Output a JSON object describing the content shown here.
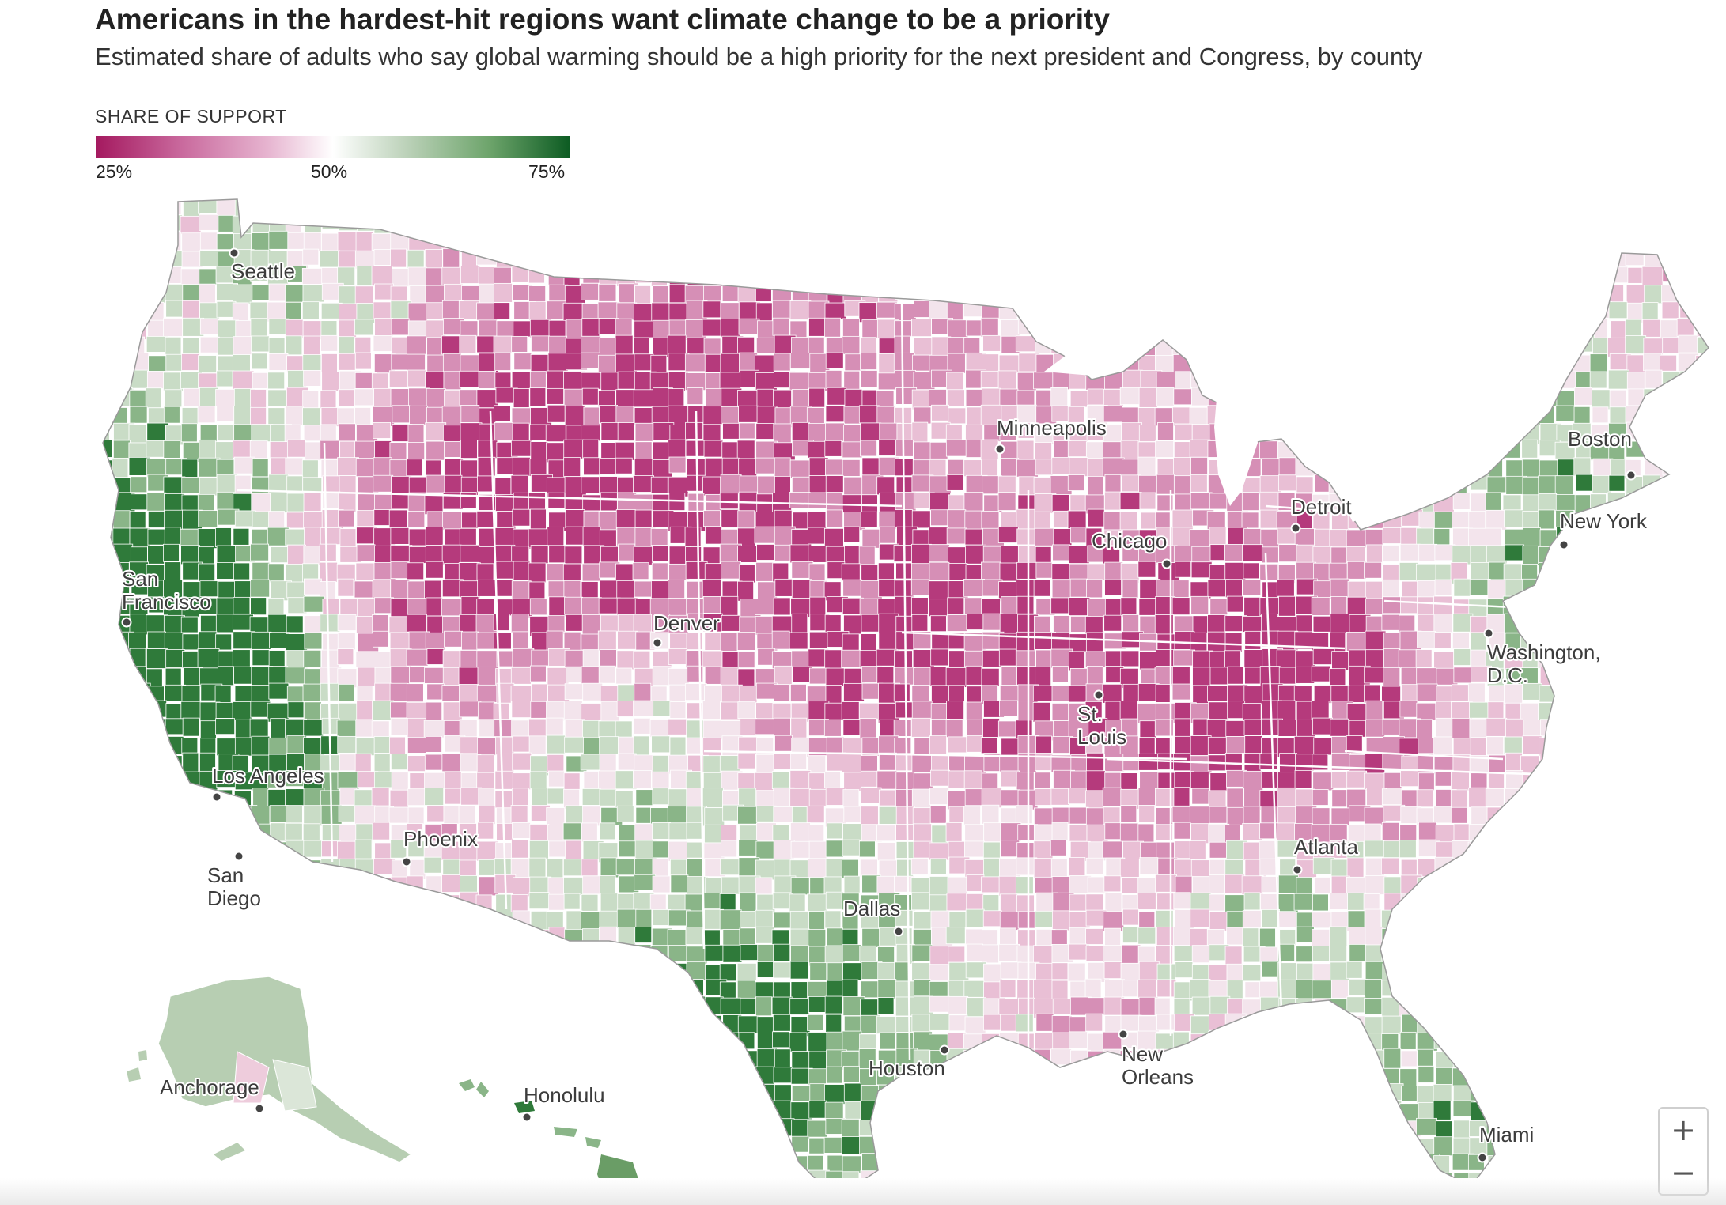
{
  "header": {
    "title": "Americans in the hardest-hit regions want climate change to be a priority",
    "subtitle": "Estimated share of adults who say global warming should be a high priority for the next president and Congress, by county"
  },
  "legend": {
    "title": "SHARE OF SUPPORT",
    "ticks": [
      "25%",
      "50%",
      "75%"
    ],
    "scale": {
      "min": 25,
      "mid": 50,
      "max": 75
    },
    "colors": {
      "low": "#a4195f",
      "mid": "#ffffff",
      "high": "#0c5b22"
    }
  },
  "map": {
    "colors": {
      "strong_pink": "#b53a7c",
      "pink": "#d68fb6",
      "light_pink": "#e9bfd5",
      "pale": "#f3e4ec",
      "light_green": "#c9dcc6",
      "green": "#8ab588",
      "dark_green": "#2f7a3a",
      "border": "#ffffff"
    },
    "cities": [
      {
        "id": "seattle",
        "lines": [
          "Seattle"
        ]
      },
      {
        "id": "san-francisco",
        "lines": [
          "San",
          "Francisco"
        ]
      },
      {
        "id": "los-angeles",
        "lines": [
          "Los Angeles"
        ]
      },
      {
        "id": "san-diego",
        "lines": [
          "San",
          "Diego"
        ]
      },
      {
        "id": "phoenix",
        "lines": [
          "Phoenix"
        ]
      },
      {
        "id": "denver",
        "lines": [
          "Denver"
        ]
      },
      {
        "id": "minneapolis",
        "lines": [
          "Minneapolis"
        ]
      },
      {
        "id": "chicago",
        "lines": [
          "Chicago"
        ]
      },
      {
        "id": "detroit",
        "lines": [
          "Detroit"
        ]
      },
      {
        "id": "st-louis",
        "lines": [
          "St.",
          "Louis"
        ]
      },
      {
        "id": "dallas",
        "lines": [
          "Dallas"
        ]
      },
      {
        "id": "houston",
        "lines": [
          "Houston"
        ]
      },
      {
        "id": "new-orleans",
        "lines": [
          "New",
          "Orleans"
        ]
      },
      {
        "id": "atlanta",
        "lines": [
          "Atlanta"
        ]
      },
      {
        "id": "miami",
        "lines": [
          "Miami"
        ]
      },
      {
        "id": "washington-dc",
        "lines": [
          "Washington,",
          "D.C."
        ]
      },
      {
        "id": "new-york",
        "lines": [
          "New York"
        ]
      },
      {
        "id": "boston",
        "lines": [
          "Boston"
        ]
      },
      {
        "id": "anchorage",
        "lines": [
          "Anchorage"
        ]
      },
      {
        "id": "honolulu",
        "lines": [
          "Honolulu"
        ]
      }
    ]
  },
  "controls": {
    "zoom_in": "+",
    "zoom_out": "−"
  }
}
